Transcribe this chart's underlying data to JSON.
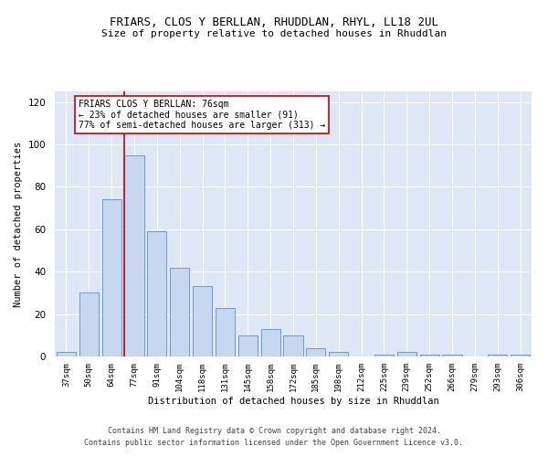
{
  "title1": "FRIARS, CLOS Y BERLLAN, RHUDDLAN, RHYL, LL18 2UL",
  "title2": "Size of property relative to detached houses in Rhuddlan",
  "xlabel": "Distribution of detached houses by size in Rhuddlan",
  "ylabel": "Number of detached properties",
  "categories": [
    "37sqm",
    "50sqm",
    "64sqm",
    "77sqm",
    "91sqm",
    "104sqm",
    "118sqm",
    "131sqm",
    "145sqm",
    "158sqm",
    "172sqm",
    "185sqm",
    "198sqm",
    "212sqm",
    "225sqm",
    "239sqm",
    "252sqm",
    "266sqm",
    "279sqm",
    "293sqm",
    "306sqm"
  ],
  "values": [
    2,
    30,
    74,
    95,
    59,
    42,
    33,
    23,
    10,
    13,
    10,
    4,
    2,
    0,
    1,
    2,
    1,
    1,
    0,
    1,
    1
  ],
  "bar_color": "#c5d8f0",
  "bar_edge_color": "#5b8fc9",
  "vline_color": "#cc0000",
  "annotation_text": "FRIARS CLOS Y BERLLAN: 76sqm\n← 23% of detached houses are smaller (91)\n77% of semi-detached houses are larger (313) →",
  "annotation_box_color": "#ffffff",
  "annotation_box_edge": "#cc0000",
  "footer1": "Contains HM Land Registry data © Crown copyright and database right 2024.",
  "footer2": "Contains public sector information licensed under the Open Government Licence v3.0.",
  "ylim": [
    0,
    125
  ],
  "yticks": [
    0,
    20,
    40,
    60,
    80,
    100,
    120
  ],
  "bg_color": "#dde7f5",
  "fig_bg": "#ffffff"
}
